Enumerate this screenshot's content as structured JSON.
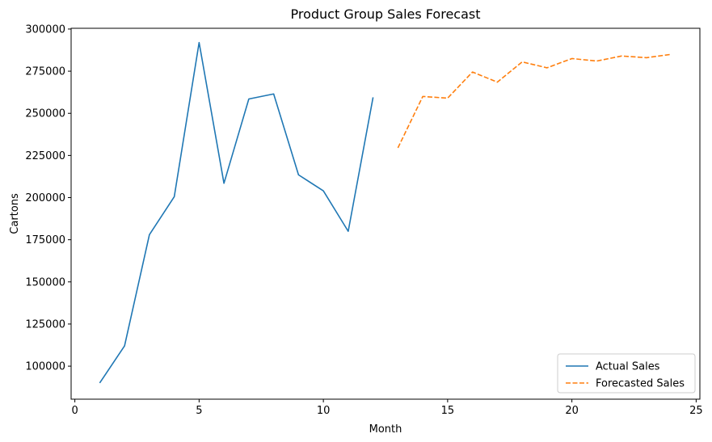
{
  "chart_data": {
    "type": "line",
    "title": "Product Group Sales Forecast",
    "xlabel": "Month",
    "ylabel": "Cartons",
    "xlim": [
      -0.15,
      25.15
    ],
    "ylim": [
      80400,
      300450
    ],
    "x_ticks": [
      0,
      5,
      10,
      15,
      20,
      25
    ],
    "y_ticks": [
      100000,
      125000,
      150000,
      175000,
      200000,
      225000,
      250000,
      275000,
      300000
    ],
    "grid": false,
    "legend_position": "lower-right",
    "series": [
      {
        "name": "Actual Sales",
        "color": "#1f77b4",
        "style": "solid",
        "x": [
          1,
          2,
          3,
          4,
          5,
          6,
          7,
          8,
          9,
          10,
          11,
          12
        ],
        "y": [
          90000,
          112000,
          178000,
          200500,
          292000,
          208500,
          258500,
          261500,
          213500,
          204000,
          180000,
          259500
        ]
      },
      {
        "name": "Forecasted Sales",
        "color": "#ff7f0e",
        "style": "dashed",
        "x": [
          13,
          14,
          15,
          16,
          17,
          18,
          19,
          20,
          21,
          22,
          23,
          24
        ],
        "y": [
          229500,
          260000,
          259000,
          274500,
          268500,
          280500,
          277000,
          282500,
          281000,
          284000,
          283000,
          285000
        ]
      }
    ]
  }
}
